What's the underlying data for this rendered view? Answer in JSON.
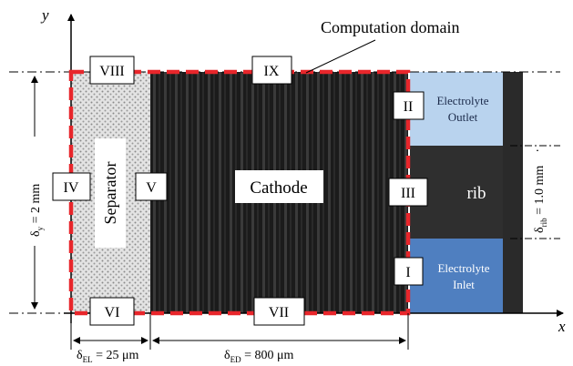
{
  "title": "Computation domain",
  "axes": {
    "x": "x",
    "y": "y"
  },
  "labels": {
    "cathode": "Cathode",
    "separator": "Separator",
    "rib": "rib",
    "outlet_line1": "Electrolyte",
    "outlet_line2": "Outlet",
    "inlet_line1": "Electrolyte",
    "inlet_line2": "Inlet"
  },
  "boundaries": [
    "I",
    "II",
    "III",
    "IV",
    "V",
    "VI",
    "VII",
    "VIII",
    "IX"
  ],
  "dimensions": {
    "height_symbol": "δ",
    "height_sub": "y",
    "height_value": " = 2 mm",
    "rib_symbol": "δ",
    "rib_sub": "rib",
    "rib_value": " = 1.0 mm",
    "el_symbol": "δ",
    "el_sub": "EL",
    "el_value": " = 25 μm",
    "ed_symbol": "δ",
    "ed_sub": "ED",
    "ed_value": " = 800 μm"
  },
  "colors": {
    "domain_border": "#e8262b",
    "cathode": "#1b1b1b",
    "separator": "#d9d9d9",
    "outlet": "#b9d3ee",
    "inlet": "#4f7fc0",
    "rib": "#2f2f2f"
  }
}
